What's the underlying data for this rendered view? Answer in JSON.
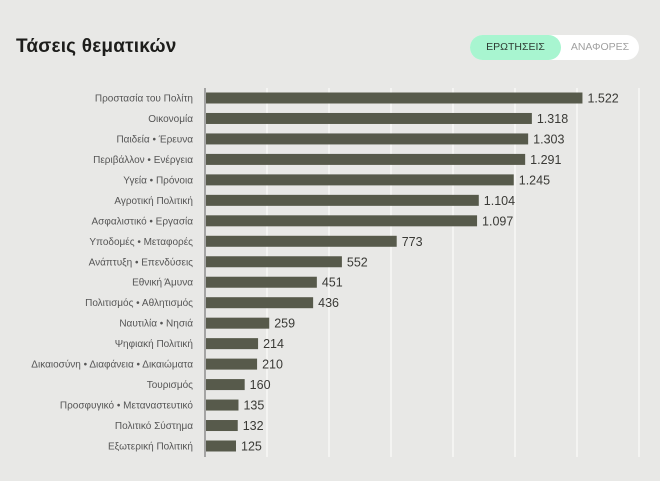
{
  "title": "Τάσεις θεματικών",
  "toggle": {
    "active": "ΕΡΩΤΗΣΕΙΣ",
    "inactive": "ΑΝΑΦΟΡΕΣ"
  },
  "colors": {
    "bar": "#575a4b",
    "active_tab": "#a8f5d0",
    "grid": "#ffffff"
  },
  "chart_data": {
    "type": "bar",
    "orientation": "horizontal",
    "title": "Τάσεις θεματικών",
    "categories": [
      "Προστασία του Πολίτη",
      "Οικονομία",
      "Παιδεία • Έρευνα",
      "Περιβάλλον • Ενέργεια",
      "Υγεία • Πρόνοια",
      "Αγροτική Πολιτική",
      "Ασφαλιστικό • Εργασία",
      "Υποδομές • Μεταφορές",
      "Ανάπτυξη • Επενδύσεις",
      "Εθνική Άμυνα",
      "Πολιτισμός • Αθλητισμός",
      "Ναυτιλία • Νησιά",
      "Ψηφιακή Πολιτική",
      "Δικαιοσύνη • Διαφάνεια • Δικαιώματα",
      "Τουρισμός",
      "Προσφυγικό • Μεταναστευτικό",
      "Πολιτικό Σύστημα",
      "Εξωτερική Πολιτική"
    ],
    "values": [
      1522,
      1318,
      1303,
      1291,
      1245,
      1104,
      1097,
      773,
      552,
      451,
      436,
      259,
      214,
      210,
      160,
      135,
      132,
      125
    ],
    "value_labels": [
      "1.522",
      "1.318",
      "1.303",
      "1.291",
      "1.245",
      "1.104",
      "1.097",
      "773",
      "552",
      "451",
      "436",
      "259",
      "214",
      "210",
      "160",
      "135",
      "132",
      "125"
    ],
    "xlim": [
      0,
      1750
    ],
    "grid_x": [
      250,
      500,
      750,
      1000,
      1250,
      1500,
      1750
    ],
    "grid": true,
    "xlabel": "",
    "ylabel": ""
  }
}
